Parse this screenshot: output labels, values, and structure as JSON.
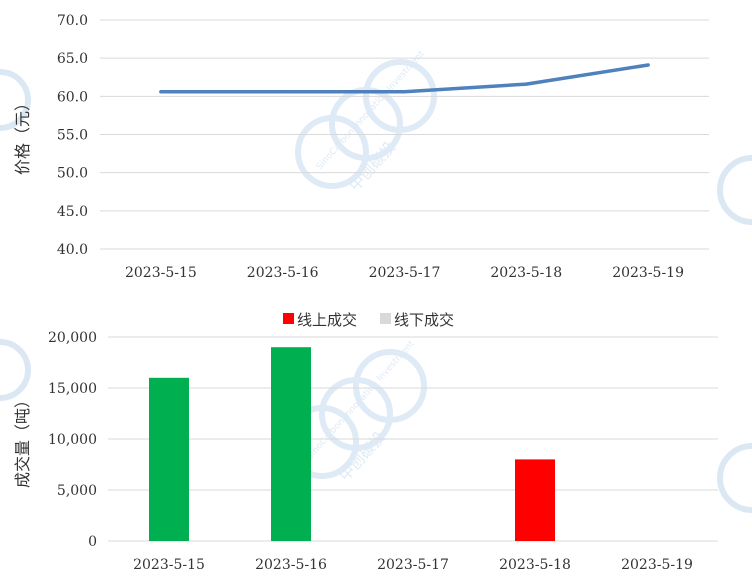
{
  "chart_data": [
    {
      "type": "line",
      "ylabel": "价格（元）",
      "xlabel": "",
      "title": "",
      "categories": [
        "2023-5-15",
        "2023-5-16",
        "2023-5-17",
        "2023-5-18",
        "2023-5-19"
      ],
      "series": [
        {
          "values": [
            60.6,
            60.6,
            60.6,
            61.6,
            64.1
          ],
          "color": "#4f81bd"
        }
      ],
      "ylim": [
        40,
        70
      ],
      "yticks": [
        "70.0",
        "65.0",
        "60.0",
        "55.0",
        "50.0",
        "45.0",
        "40.0"
      ],
      "grid": true
    },
    {
      "type": "bar",
      "ylabel": "成交量（吨）",
      "xlabel": "",
      "title": "",
      "categories": [
        "2023-5-15",
        "2023-5-16",
        "2023-5-17",
        "2023-5-18",
        "2023-5-19"
      ],
      "legend_position": "top",
      "series": [
        {
          "name": "线上成交",
          "color": "#ff0000",
          "values": [
            0,
            0,
            0,
            8000,
            0
          ]
        },
        {
          "name": "线下成交",
          "color": "#d9d9d9",
          "values": [
            16000,
            19000,
            0,
            0,
            0
          ]
        }
      ],
      "bar_colors": [
        "#00b050",
        "#00b050",
        "#00b050",
        "#ff0000",
        "#00b050"
      ],
      "ylim": [
        0,
        20000
      ],
      "yticks": [
        "20,000",
        "15,000",
        "10,000",
        "5,000",
        "0"
      ],
      "grid": true
    }
  ],
  "watermark": {
    "text_en": "SinoCarbon Innovation Investment",
    "text_cn": "中创碳投",
    "color": "#dbe8f4"
  }
}
